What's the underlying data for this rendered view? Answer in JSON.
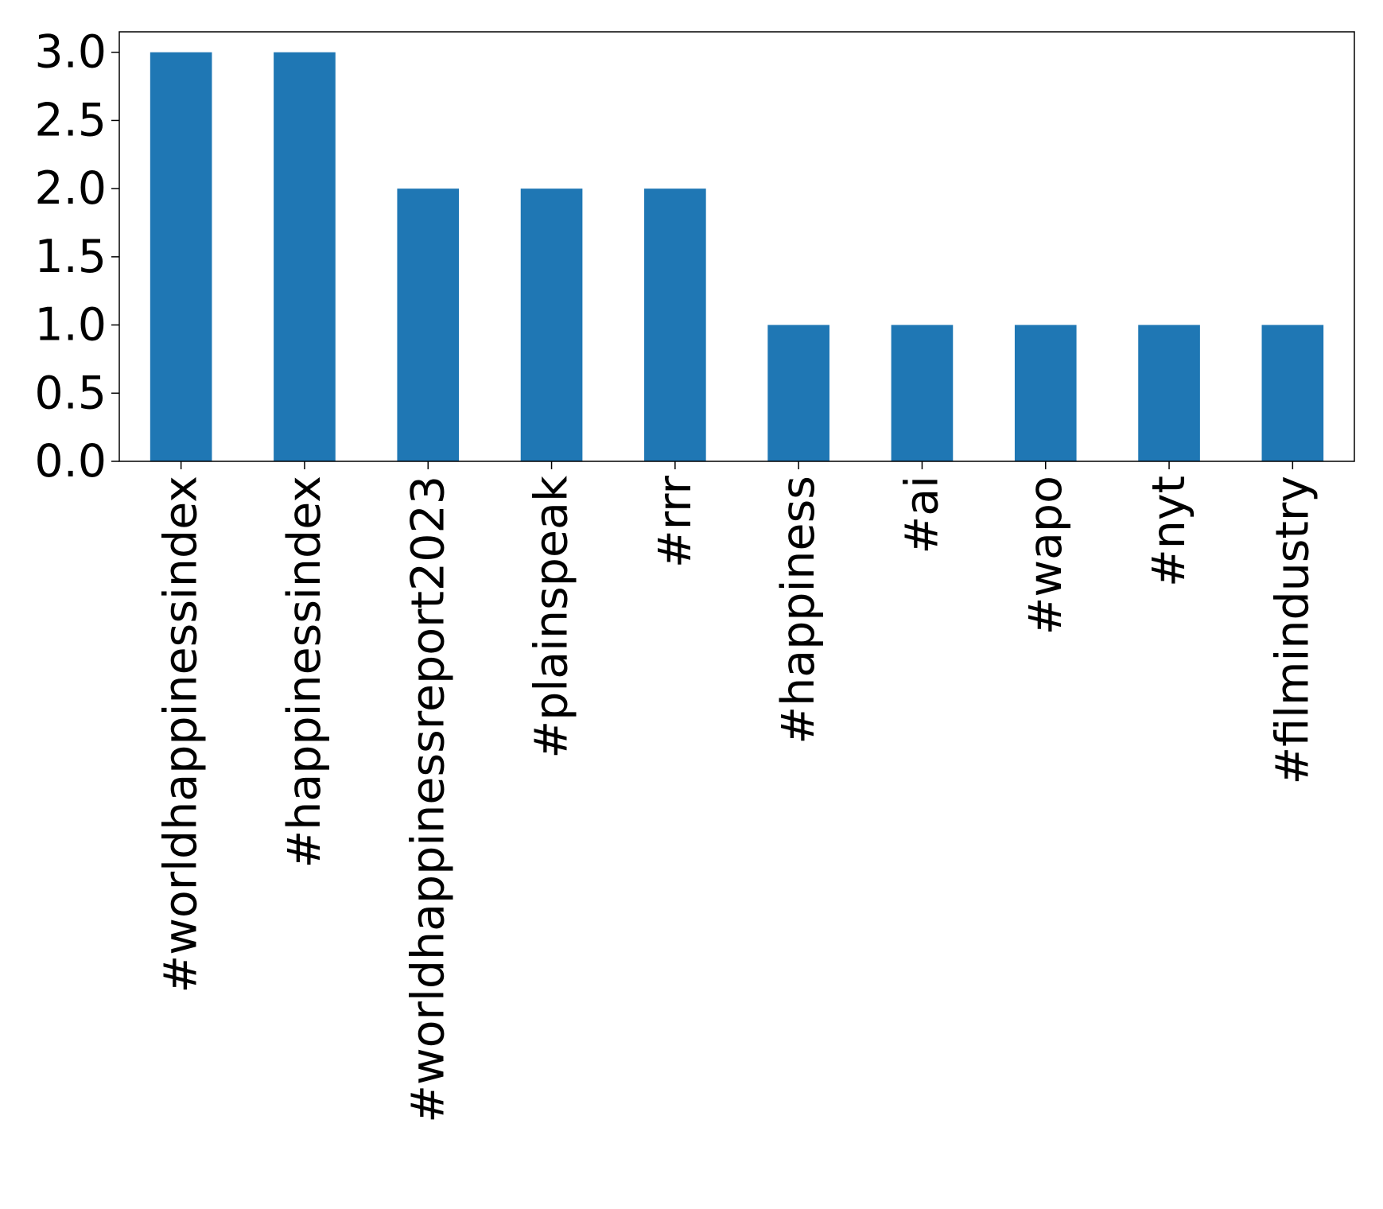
{
  "chart_data": {
    "type": "bar",
    "categories": [
      "#worldhappinessindex",
      "#happinessindex",
      "#worldhappinessreport2023",
      "#plainspeak",
      "#rrr",
      "#happiness",
      "#ai",
      "#wapo",
      "#nyt",
      "#filmindustry"
    ],
    "values": [
      3,
      3,
      2,
      2,
      2,
      1,
      1,
      1,
      1,
      1
    ],
    "yticks": [
      "0.0",
      "0.5",
      "1.0",
      "1.5",
      "2.0",
      "2.5",
      "3.0"
    ],
    "ylim": [
      0,
      3.15
    ],
    "title": "",
    "xlabel": "",
    "ylabel": "",
    "bar_color": "#1f77b4",
    "grid": false,
    "legend": "none"
  }
}
